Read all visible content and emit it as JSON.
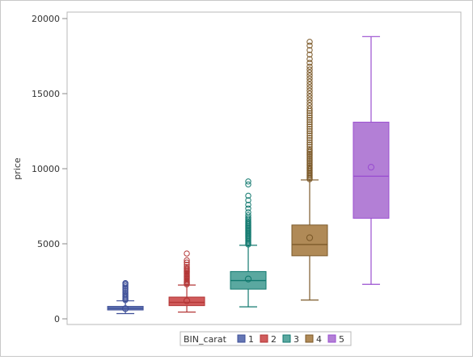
{
  "chart_data": {
    "type": "boxplot",
    "ylabel": "price",
    "xlabel": "",
    "ylim": [
      0,
      20000
    ],
    "yticks": [
      0,
      5000,
      10000,
      15000,
      20000
    ],
    "grid": false,
    "legend": {
      "title": "BIN_carat",
      "position": "bottom-center",
      "entries": [
        "1",
        "2",
        "3",
        "4",
        "5"
      ]
    },
    "series": [
      {
        "name": "1",
        "color": "#6476b4",
        "stroke": "#3e4f97",
        "whisker_low": 350,
        "q1": 590,
        "median": 700,
        "q3": 830,
        "whisker_high": 1200,
        "mean": 680,
        "outliers": [
          1250,
          1320,
          1400,
          1480,
          1560,
          1650,
          1750,
          1850,
          1950,
          2050,
          2150,
          2250,
          2330,
          2380
        ]
      },
      {
        "name": "2",
        "color": "#d05b5b",
        "stroke": "#b33636",
        "whisker_low": 450,
        "q1": 880,
        "median": 1100,
        "q3": 1450,
        "whisker_high": 2250,
        "mean": 1200,
        "outliers": [
          2300,
          2380,
          2450,
          2520,
          2600,
          2680,
          2750,
          2830,
          2900,
          2980,
          3050,
          3130,
          3200,
          3280,
          3350,
          3450,
          3600,
          3750,
          3900,
          4350
        ]
      },
      {
        "name": "3",
        "color": "#5aa8a0",
        "stroke": "#12796f",
        "whisker_low": 800,
        "q1": 1980,
        "median": 2550,
        "q3": 3150,
        "whisker_high": 4900,
        "mean": 2650,
        "outliers": [
          4950,
          5020,
          5100,
          5180,
          5260,
          5340,
          5420,
          5500,
          5580,
          5660,
          5740,
          5820,
          5900,
          5980,
          6060,
          6140,
          6220,
          6300,
          6380,
          6460,
          6550,
          6650,
          6750,
          6900,
          7100,
          7350,
          7600,
          7900,
          8200,
          8950,
          9150
        ]
      },
      {
        "name": "4",
        "color": "#b08a57",
        "stroke": "#7c5a2a",
        "whisker_low": 1250,
        "q1": 4200,
        "median": 4950,
        "q3": 6250,
        "whisker_high": 9250,
        "mean": 5400,
        "outliers": [
          9300,
          9380,
          9460,
          9540,
          9620,
          9700,
          9780,
          9860,
          9940,
          10020,
          10100,
          10200,
          10300,
          10400,
          10500,
          10600,
          10700,
          10800,
          10900,
          11000,
          11100,
          11200,
          11300,
          11450,
          11600,
          11750,
          11900,
          12050,
          12200,
          12350,
          12500,
          12650,
          12800,
          12950,
          13100,
          13250,
          13400,
          13550,
          13700,
          13850,
          14000,
          14200,
          14400,
          14600,
          14800,
          15000,
          15200,
          15400,
          15600,
          15800,
          16000,
          16200,
          16400,
          16600,
          16800,
          17050,
          17300,
          17600,
          17900,
          18200,
          18450
        ]
      },
      {
        "name": "5",
        "color": "#b37fd6",
        "stroke": "#9a4fd0",
        "whisker_low": 2300,
        "q1": 6700,
        "median": 9500,
        "q3": 13100,
        "whisker_high": 18800,
        "mean": 10100,
        "outliers": []
      }
    ]
  }
}
